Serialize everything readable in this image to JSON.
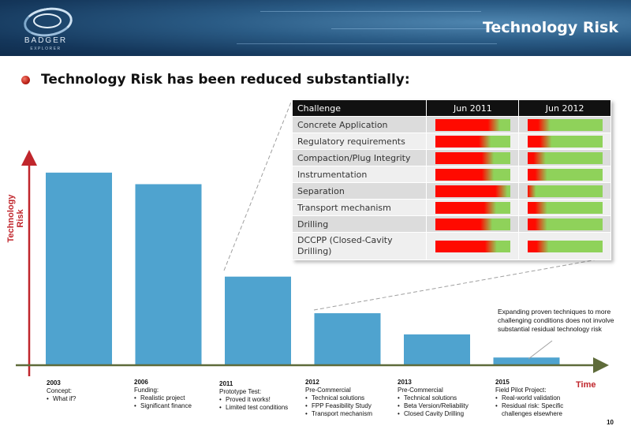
{
  "header": {
    "title": "Technology Risk",
    "logo": {
      "name": "BADGER",
      "tagline": "EXPLORER"
    }
  },
  "headline": "Technology Risk has been reduced substantially:",
  "axes": {
    "y_label": "Technology Risk",
    "x_label": "Time"
  },
  "chart_data": {
    "type": "bar",
    "categories": [
      "2003",
      "2006",
      "2011",
      "2012",
      "2013",
      "2015"
    ],
    "values": [
      100,
      94,
      46,
      27,
      16,
      4
    ],
    "ylabel": "Technology Risk",
    "xlabel": "Time",
    "ylim": [
      0,
      120
    ],
    "color": "#4fa3cf"
  },
  "milestones": [
    {
      "year": "2003",
      "title": "Concept:",
      "items": [
        "What if?"
      ]
    },
    {
      "year": "2006",
      "title": "Funding:",
      "items": [
        "Realistic project",
        "Significant finance"
      ]
    },
    {
      "year": "2011",
      "title": "Prototype Test:",
      "items": [
        "Proved it works!",
        "Limited test conditions"
      ]
    },
    {
      "year": "2012",
      "title": "Pre-Commercial",
      "items": [
        "Technical solutions",
        "FPP Feasibility Study",
        "Transport mechanism"
      ]
    },
    {
      "year": "2013",
      "title": "Pre-Commercial",
      "items": [
        "Technical solutions",
        "Beta Version/Reliability",
        "Closed Cavity Drilling"
      ]
    },
    {
      "year": "2015",
      "title": "Field Pilot Project:",
      "items": [
        "Real-world validation",
        "Residual risk: Specific challenges elsewhere"
      ]
    }
  ],
  "annotation": "Expanding proven techniques to more challenging conditions does not involve substantial residual technology risk",
  "challenge_table": {
    "headers": [
      "Challenge",
      "Jun 2011",
      "Jun 2012"
    ],
    "rows": [
      {
        "label": "Concrete Application",
        "jun2011": 0.78,
        "jun2012": 0.22
      },
      {
        "label": "Regulatory requirements",
        "jun2011": 0.66,
        "jun2012": 0.24
      },
      {
        "label": "Compaction/Plug Integrity",
        "jun2011": 0.7,
        "jun2012": 0.16
      },
      {
        "label": "Instrumentation",
        "jun2011": 0.7,
        "jun2012": 0.18
      },
      {
        "label": "Separation",
        "jun2011": 0.88,
        "jun2012": 0.03
      },
      {
        "label": "Transport mechanism",
        "jun2011": 0.73,
        "jun2012": 0.18
      },
      {
        "label": "Drilling",
        "jun2011": 0.68,
        "jun2012": 0.18
      },
      {
        "label": "DCCPP (Closed-Cavity Drilling)",
        "jun2011": 0.74,
        "jun2012": 0.2
      }
    ]
  },
  "colors": {
    "risk_high": "#ff0a00",
    "risk_low": "#8fd25a",
    "bar": "#4fa3cf",
    "axis": "#5e6b3a",
    "accent": "#c0262c"
  },
  "page_number": "10"
}
